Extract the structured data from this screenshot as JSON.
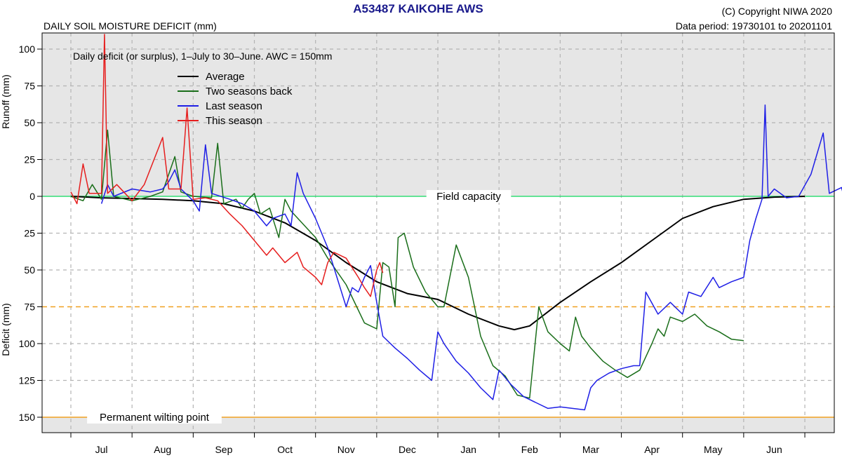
{
  "header": {
    "title": "A53487  KAIKOHE AWS",
    "subtitle": "DAILY SOIL MOISTURE DEFICIT (mm)",
    "copyright": "(C) Copyright NIWA  2020",
    "data_period": "Data period:  19730101  to  20201101"
  },
  "chart_data": {
    "type": "line",
    "title": "A53487  KAIKOHE AWS",
    "subtitle": "DAILY SOIL MOISTURE DEFICIT (mm)",
    "note": "Daily deficit (or surplus), 1–July to 30–June.  AWC = 150mm",
    "y_label_top": "Runoff (mm)",
    "y_label_bottom": "Deficit (mm)",
    "y_ticks": [
      {
        "value": 100,
        "label": "100"
      },
      {
        "value": 75,
        "label": "75"
      },
      {
        "value": 50,
        "label": "50"
      },
      {
        "value": 25,
        "label": "25"
      },
      {
        "value": 0,
        "label": "0"
      },
      {
        "value": -25,
        "label": "25"
      },
      {
        "value": -50,
        "label": "50"
      },
      {
        "value": -75,
        "label": "75"
      },
      {
        "value": -100,
        "label": "100"
      },
      {
        "value": -125,
        "label": "125"
      },
      {
        "value": -150,
        "label": "150"
      }
    ],
    "ylim": [
      -160,
      110
    ],
    "xlim": [
      -0.5,
      12.5
    ],
    "x_month_labels": [
      "Jul",
      "Aug",
      "Sep",
      "Oct",
      "Nov",
      "Dec",
      "Jan",
      "Feb",
      "Mar",
      "Apr",
      "May",
      "Jun"
    ],
    "grid": true,
    "legend_position": "top-left",
    "reference_lines": [
      {
        "name": "Field capacity",
        "value": 0,
        "color": "#33dd77",
        "style": "solid"
      },
      {
        "name": "",
        "value": -75,
        "color": "#f0a020",
        "style": "dashed"
      },
      {
        "name": "Permanent wilting point",
        "value": -150,
        "color": "#f0a020",
        "style": "solid"
      }
    ],
    "series": [
      {
        "name": "Average",
        "color": "#000000",
        "points": [
          [
            0,
            0
          ],
          [
            0.5,
            -1
          ],
          [
            1,
            -1.5
          ],
          [
            1.5,
            -2
          ],
          [
            2,
            -3
          ],
          [
            2.5,
            -5
          ],
          [
            3,
            -10
          ],
          [
            3.5,
            -18
          ],
          [
            4,
            -30
          ],
          [
            4.5,
            -45
          ],
          [
            5,
            -58
          ],
          [
            5.5,
            -66
          ],
          [
            6,
            -70
          ],
          [
            6.5,
            -80
          ],
          [
            7,
            -88
          ],
          [
            7.25,
            -90.5
          ],
          [
            7.5,
            -88
          ],
          [
            8,
            -72
          ],
          [
            8.5,
            -58
          ],
          [
            9,
            -45
          ],
          [
            9.5,
            -30
          ],
          [
            10,
            -15
          ],
          [
            10.5,
            -7
          ],
          [
            11,
            -2
          ],
          [
            11.5,
            -0.5
          ],
          [
            12,
            0
          ]
        ]
      },
      {
        "name": "Two seasons back",
        "color": "#1a6e1a",
        "points": [
          [
            0,
            0
          ],
          [
            0.2,
            -3
          ],
          [
            0.35,
            8
          ],
          [
            0.5,
            -2
          ],
          [
            0.6,
            45
          ],
          [
            0.7,
            0
          ],
          [
            1,
            -3
          ],
          [
            1.3,
            0
          ],
          [
            1.5,
            3
          ],
          [
            1.7,
            27
          ],
          [
            1.8,
            3
          ],
          [
            2,
            0
          ],
          [
            2.3,
            -1
          ],
          [
            2.4,
            36
          ],
          [
            2.5,
            -5
          ],
          [
            2.7,
            -2
          ],
          [
            2.8,
            -8
          ],
          [
            2.9,
            -2
          ],
          [
            3,
            2
          ],
          [
            3.1,
            -12
          ],
          [
            3.25,
            -8
          ],
          [
            3.4,
            -28
          ],
          [
            3.5,
            -2
          ],
          [
            3.6,
            -10
          ],
          [
            4,
            -28
          ],
          [
            4.2,
            -42
          ],
          [
            4.5,
            -60
          ],
          [
            4.8,
            -86
          ],
          [
            5,
            -90
          ],
          [
            5.1,
            -45
          ],
          [
            5.2,
            -48
          ],
          [
            5.3,
            -75
          ],
          [
            5.35,
            -28
          ],
          [
            5.45,
            -25
          ],
          [
            5.6,
            -48
          ],
          [
            5.8,
            -65
          ],
          [
            5.9,
            -70
          ],
          [
            6,
            -75
          ],
          [
            6.1,
            -75
          ],
          [
            6.3,
            -33
          ],
          [
            6.5,
            -55
          ],
          [
            6.7,
            -95
          ],
          [
            6.9,
            -115
          ],
          [
            7.1,
            -122
          ],
          [
            7.3,
            -135
          ],
          [
            7.5,
            -137
          ],
          [
            7.65,
            -75
          ],
          [
            7.8,
            -92
          ],
          [
            8,
            -100
          ],
          [
            8.15,
            -105
          ],
          [
            8.25,
            -82
          ],
          [
            8.35,
            -95
          ],
          [
            8.5,
            -103
          ],
          [
            8.7,
            -112
          ],
          [
            8.9,
            -118
          ],
          [
            9.1,
            -123
          ],
          [
            9.3,
            -118
          ],
          [
            9.5,
            -100
          ],
          [
            9.6,
            -90
          ],
          [
            9.7,
            -95
          ],
          [
            9.8,
            -82
          ],
          [
            10,
            -85
          ],
          [
            10.2,
            -80
          ],
          [
            10.4,
            -88
          ],
          [
            10.6,
            -92
          ],
          [
            10.8,
            -97
          ],
          [
            11,
            -98
          ]
        ]
      },
      {
        "name": "Last season",
        "color": "#1f1fe6",
        "points": [
          [
            0.5,
            -5
          ],
          [
            0.6,
            8
          ],
          [
            0.7,
            0
          ],
          [
            1,
            5
          ],
          [
            1.3,
            3
          ],
          [
            1.5,
            5
          ],
          [
            1.6,
            10
          ],
          [
            1.7,
            18
          ],
          [
            1.8,
            5
          ],
          [
            2,
            -3
          ],
          [
            2.1,
            -10
          ],
          [
            2.2,
            35
          ],
          [
            2.3,
            2
          ],
          [
            2.6,
            -2
          ],
          [
            2.8,
            -5
          ],
          [
            3,
            -10
          ],
          [
            3.1,
            -15
          ],
          [
            3.2,
            -20
          ],
          [
            3.3,
            -15
          ],
          [
            3.5,
            -12
          ],
          [
            3.6,
            -20
          ],
          [
            3.7,
            16
          ],
          [
            3.8,
            2
          ],
          [
            4,
            -15
          ],
          [
            4.2,
            -35
          ],
          [
            4.35,
            -55
          ],
          [
            4.5,
            -75
          ],
          [
            4.6,
            -62
          ],
          [
            4.7,
            -65
          ],
          [
            4.8,
            -55
          ],
          [
            4.9,
            -47
          ],
          [
            5,
            -72
          ],
          [
            5.1,
            -95
          ],
          [
            5.3,
            -103
          ],
          [
            5.5,
            -110
          ],
          [
            5.7,
            -118
          ],
          [
            5.9,
            -125
          ],
          [
            6,
            -92
          ],
          [
            6.1,
            -100
          ],
          [
            6.3,
            -112
          ],
          [
            6.5,
            -120
          ],
          [
            6.7,
            -130
          ],
          [
            6.9,
            -138
          ],
          [
            7,
            -118
          ],
          [
            7.2,
            -128
          ],
          [
            7.4,
            -136
          ],
          [
            7.6,
            -140
          ],
          [
            7.8,
            -144
          ],
          [
            8,
            -143
          ],
          [
            8.2,
            -144
          ],
          [
            8.4,
            -145
          ],
          [
            8.5,
            -130
          ],
          [
            8.6,
            -125
          ],
          [
            8.8,
            -120
          ],
          [
            9,
            -117
          ],
          [
            9.2,
            -115
          ],
          [
            9.3,
            -115
          ],
          [
            9.4,
            -65
          ],
          [
            9.6,
            -80
          ],
          [
            9.8,
            -72
          ],
          [
            10,
            -80
          ],
          [
            10.1,
            -65
          ],
          [
            10.3,
            -68
          ],
          [
            10.5,
            -55
          ],
          [
            10.6,
            -62
          ],
          [
            10.8,
            -58
          ],
          [
            11,
            -55
          ],
          [
            11.1,
            -30
          ],
          [
            11.2,
            -15
          ],
          [
            11.3,
            -2
          ],
          [
            11.35,
            62
          ],
          [
            11.4,
            0
          ],
          [
            11.5,
            5
          ],
          [
            11.7,
            -1
          ],
          [
            11.9,
            0
          ],
          [
            12.1,
            15
          ],
          [
            12.3,
            43
          ],
          [
            12.4,
            2
          ],
          [
            12.6,
            6
          ],
          [
            12.65,
            -2
          ]
        ]
      },
      {
        "name": "This season",
        "color": "#e61f1f",
        "points": [
          [
            0,
            3
          ],
          [
            0.1,
            -5
          ],
          [
            0.2,
            22
          ],
          [
            0.3,
            2
          ],
          [
            0.5,
            2
          ],
          [
            0.55,
            110
          ],
          [
            0.6,
            2
          ],
          [
            0.75,
            8
          ],
          [
            1,
            -3
          ],
          [
            1.2,
            8
          ],
          [
            1.5,
            40
          ],
          [
            1.6,
            5
          ],
          [
            1.8,
            5
          ],
          [
            1.9,
            60
          ],
          [
            2,
            -2
          ],
          [
            2.2,
            -1
          ],
          [
            2.4,
            -3
          ],
          [
            2.6,
            -12
          ],
          [
            2.8,
            -20
          ],
          [
            3,
            -30
          ],
          [
            3.2,
            -40
          ],
          [
            3.3,
            -35
          ],
          [
            3.4,
            -40
          ],
          [
            3.5,
            -45
          ],
          [
            3.7,
            -38
          ],
          [
            3.8,
            -48
          ],
          [
            4,
            -55
          ],
          [
            4.1,
            -60
          ],
          [
            4.2,
            -45
          ],
          [
            4.3,
            -38
          ],
          [
            4.5,
            -42
          ],
          [
            4.7,
            -55
          ],
          [
            4.8,
            -62
          ],
          [
            4.9,
            -68
          ],
          [
            5,
            -50
          ],
          [
            5.05,
            -45
          ],
          [
            5.1,
            -52
          ]
        ]
      }
    ]
  }
}
